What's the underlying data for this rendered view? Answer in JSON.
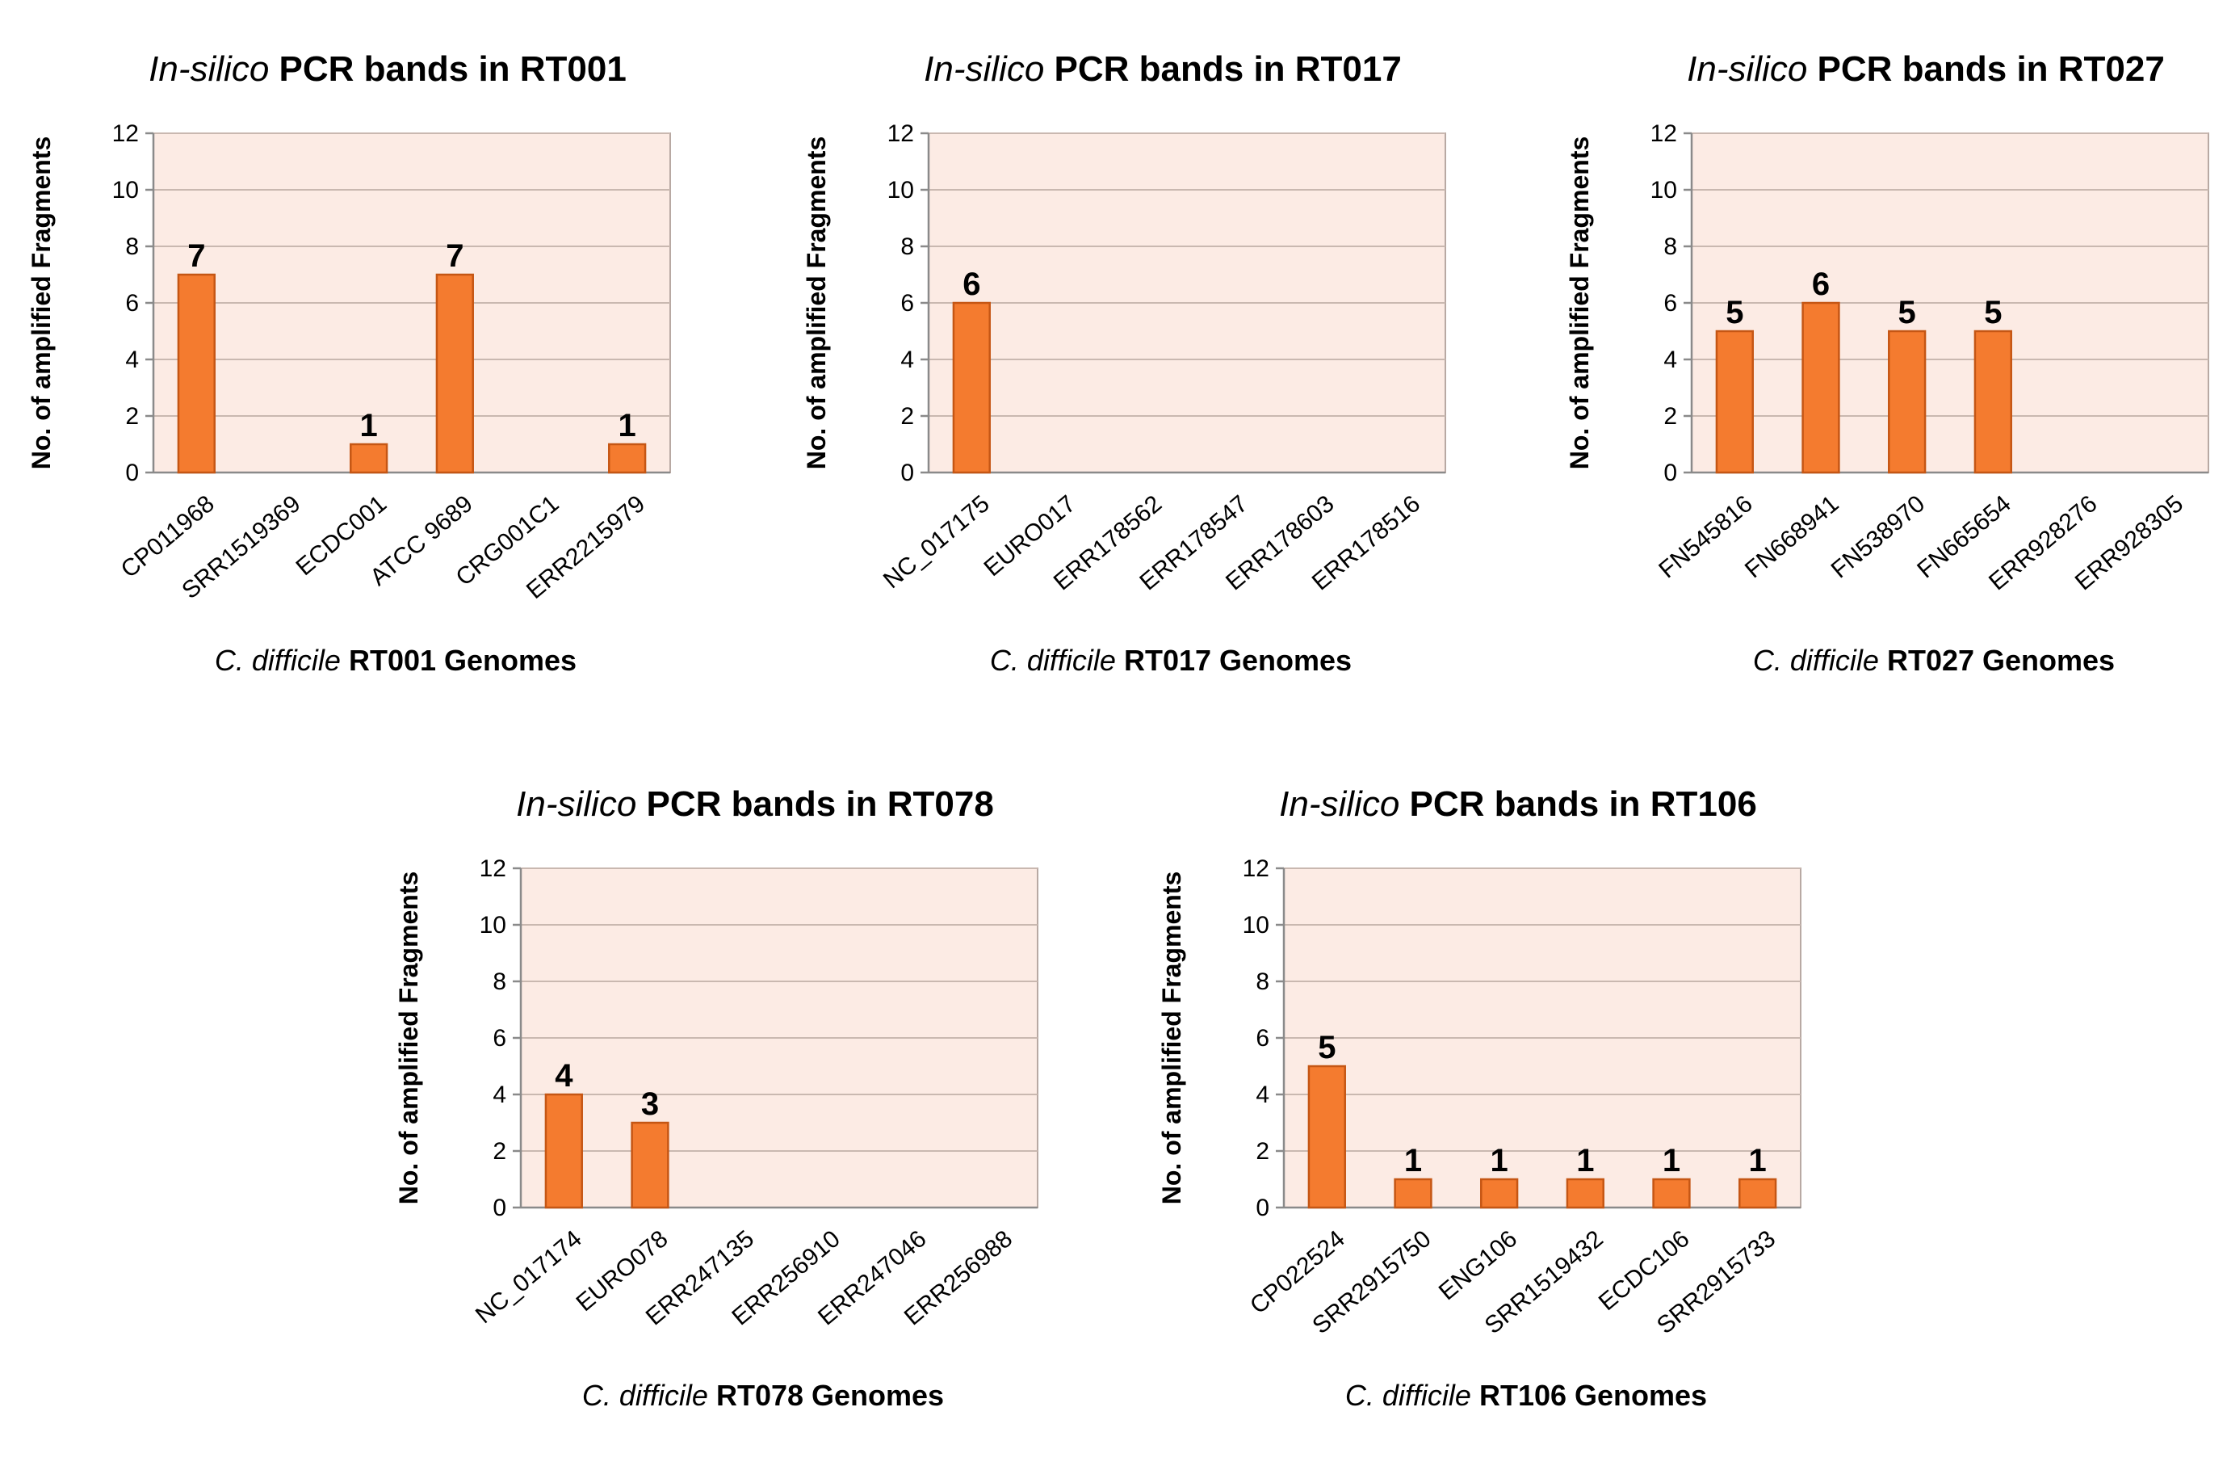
{
  "chart_data": [
    {
      "type": "bar",
      "title_italic": "In-silico",
      "title_rest": " PCR bands in RT001",
      "xlabel_italic": "C. difficile",
      "xlabel_rest": " RT001 Genomes",
      "ylabel": "No. of amplified Fragments",
      "ylim": [
        0,
        12
      ],
      "yticks": [
        "0",
        "2",
        "4",
        "6",
        "8",
        "10",
        "12"
      ],
      "categories": [
        "CP011968",
        "SRR1519369",
        "ECDC001",
        "ATCC 9689",
        "CRG001C1",
        "ERR2215979"
      ],
      "values": [
        7,
        0,
        1,
        7,
        0,
        1
      ],
      "data_labels": [
        "7",
        "",
        "1",
        "7",
        "",
        "1"
      ],
      "bar_color": "#f47b2f"
    },
    {
      "type": "bar",
      "title_italic": "In-silico",
      "title_rest": " PCR bands in RT017",
      "xlabel_italic": "C. difficile",
      "xlabel_rest": " RT017 Genomes",
      "ylabel": "No. of amplified Fragments",
      "ylim": [
        0,
        12
      ],
      "yticks": [
        "0",
        "2",
        "4",
        "6",
        "8",
        "10",
        "12"
      ],
      "categories": [
        "NC_017175",
        "EURO017",
        "ERR178562",
        "ERR178547",
        "ERR178603",
        "ERR178516"
      ],
      "values": [
        6,
        0,
        0,
        0,
        0,
        0
      ],
      "data_labels": [
        "6",
        "",
        "",
        "",
        "",
        ""
      ],
      "bar_color": "#f47b2f"
    },
    {
      "type": "bar",
      "title_italic": "In-silico",
      "title_rest": " PCR bands in RT027",
      "xlabel_italic": "C. difficile",
      "xlabel_rest": " RT027 Genomes",
      "ylabel": "No. of amplified Fragments",
      "ylim": [
        0,
        12
      ],
      "yticks": [
        "0",
        "2",
        "4",
        "6",
        "8",
        "10",
        "12"
      ],
      "categories": [
        "FN545816",
        "FN668941",
        "FN538970",
        "FN665654",
        "ERR928276",
        "ERR928305"
      ],
      "values": [
        5,
        6,
        5,
        5,
        0,
        0
      ],
      "data_labels": [
        "5",
        "6",
        "5",
        "5",
        "",
        ""
      ],
      "bar_color": "#f47b2f"
    },
    {
      "type": "bar",
      "title_italic": "In-silico",
      "title_rest": " PCR bands  in RT078",
      "xlabel_italic": "C. difficile",
      "xlabel_rest": " RT078 Genomes",
      "ylabel": "No. of amplified Fragments",
      "ylim": [
        0,
        12
      ],
      "yticks": [
        "0",
        "2",
        "4",
        "6",
        "8",
        "10",
        "12"
      ],
      "categories": [
        "NC_017174",
        "EURO078",
        "ERR247135",
        "ERR256910",
        "ERR247046",
        "ERR256988"
      ],
      "values": [
        4,
        3,
        0,
        0,
        0,
        0
      ],
      "data_labels": [
        "4",
        "3",
        "",
        "",
        "",
        ""
      ],
      "bar_color": "#f47b2f"
    },
    {
      "type": "bar",
      "title_italic": "In-silico",
      "title_rest": " PCR bands in RT106",
      "xlabel_italic": "C. difficile",
      "xlabel_rest": " RT106 Genomes",
      "ylabel": "No. of amplified Fragments",
      "ylim": [
        0,
        12
      ],
      "yticks": [
        "0",
        "2",
        "4",
        "6",
        "8",
        "10",
        "12"
      ],
      "categories": [
        "CP022524",
        "SRR2915750",
        "ENG106",
        "SRR1519432",
        "ECDC106",
        "SRR2915733"
      ],
      "values": [
        5,
        1,
        1,
        1,
        1,
        1
      ],
      "data_labels": [
        "5",
        "1",
        "1",
        "1",
        "1",
        "1"
      ],
      "bar_color": "#f47b2f"
    }
  ]
}
